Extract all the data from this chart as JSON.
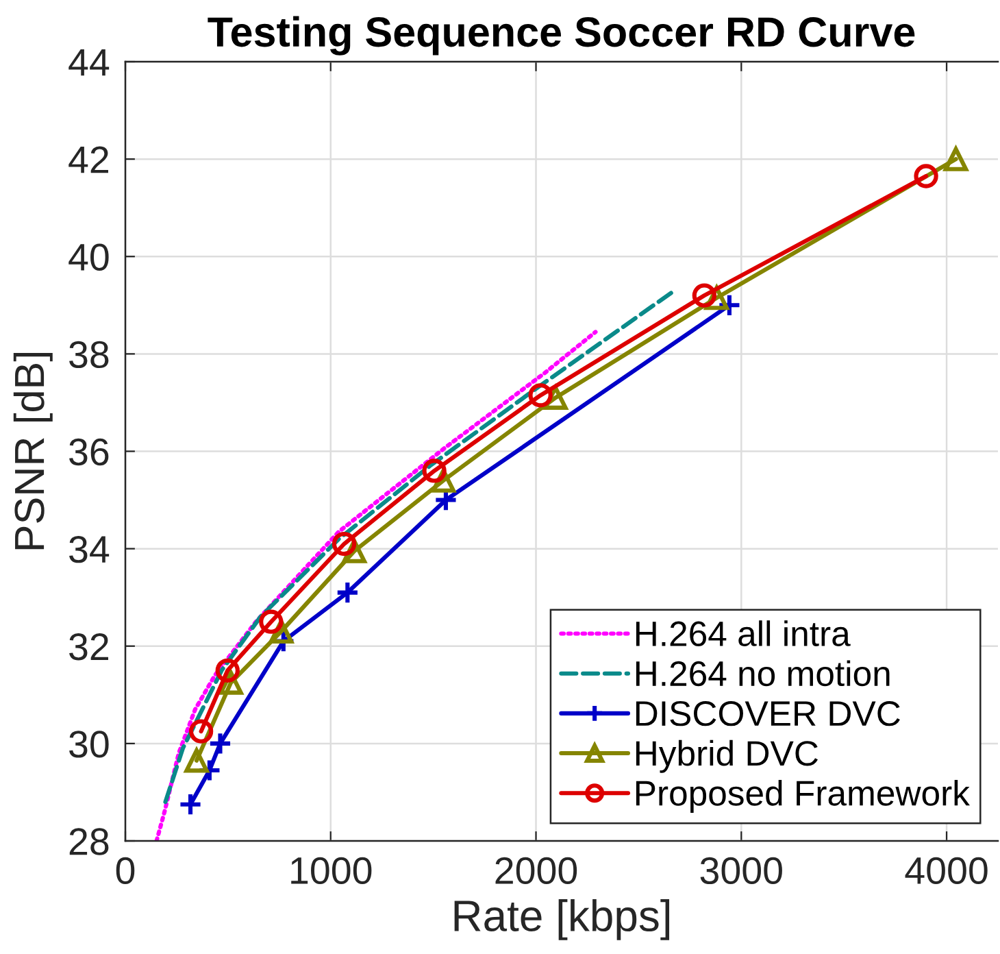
{
  "chart_data": {
    "type": "line",
    "title": "Testing Sequence Soccer RD Curve",
    "xlabel": "Rate [kbps]",
    "ylabel": "PSNR [dB]",
    "xlim": [
      0,
      4250
    ],
    "xticks": [
      0,
      1000,
      2000,
      3000,
      4000
    ],
    "ylim": [
      28,
      44
    ],
    "yticks": [
      28,
      30,
      32,
      34,
      36,
      38,
      40,
      42,
      44
    ],
    "grid": true,
    "legend": "bottom right",
    "series": [
      {
        "name": "H.264 all intra",
        "color": "#ff00ff",
        "line_style": "dotted",
        "marker": "none",
        "x": [
          152,
          191,
          260,
          340,
          436,
          636,
          1040,
          1550,
          2040,
          2290
        ],
        "values": [
          28.0,
          28.6,
          29.8,
          30.7,
          31.4,
          32.5,
          34.35,
          36.05,
          37.6,
          38.45
        ]
      },
      {
        "name": "H.264 no motion",
        "color": "#0a8a8a",
        "line_style": "dashed",
        "marker": "none",
        "x": [
          195,
          280,
          469,
          658,
          1040,
          1483,
          2018,
          2597,
          2675
        ],
        "values": [
          28.8,
          29.9,
          31.5,
          32.6,
          34.2,
          35.7,
          37.34,
          39.07,
          39.3
        ]
      },
      {
        "name": "DISCOVER DVC",
        "color": "#0000c8",
        "line_style": "solid",
        "marker": "cross",
        "x": [
          317,
          410,
          462,
          770,
          1082,
          1561,
          2942
        ],
        "values": [
          28.75,
          29.45,
          30.0,
          32.1,
          33.1,
          35.0,
          39.0
        ]
      },
      {
        "name": "Hybrid DVC",
        "color": "#858500",
        "line_style": "solid",
        "marker": "triangle",
        "x": [
          347,
          514,
          759,
          1115,
          1549,
          2095,
          2880,
          4045
        ],
        "values": [
          29.65,
          31.25,
          32.3,
          33.95,
          35.4,
          37.1,
          39.15,
          42.0
        ]
      },
      {
        "name": "Proposed Framework",
        "color": "#dd0000",
        "line_style": "solid",
        "marker": "circle",
        "x": [
          369,
          498,
          710,
          1066,
          1505,
          2022,
          2820,
          3900
        ],
        "values": [
          30.25,
          31.5,
          32.5,
          34.1,
          35.6,
          37.15,
          39.2,
          41.65
        ]
      }
    ]
  }
}
